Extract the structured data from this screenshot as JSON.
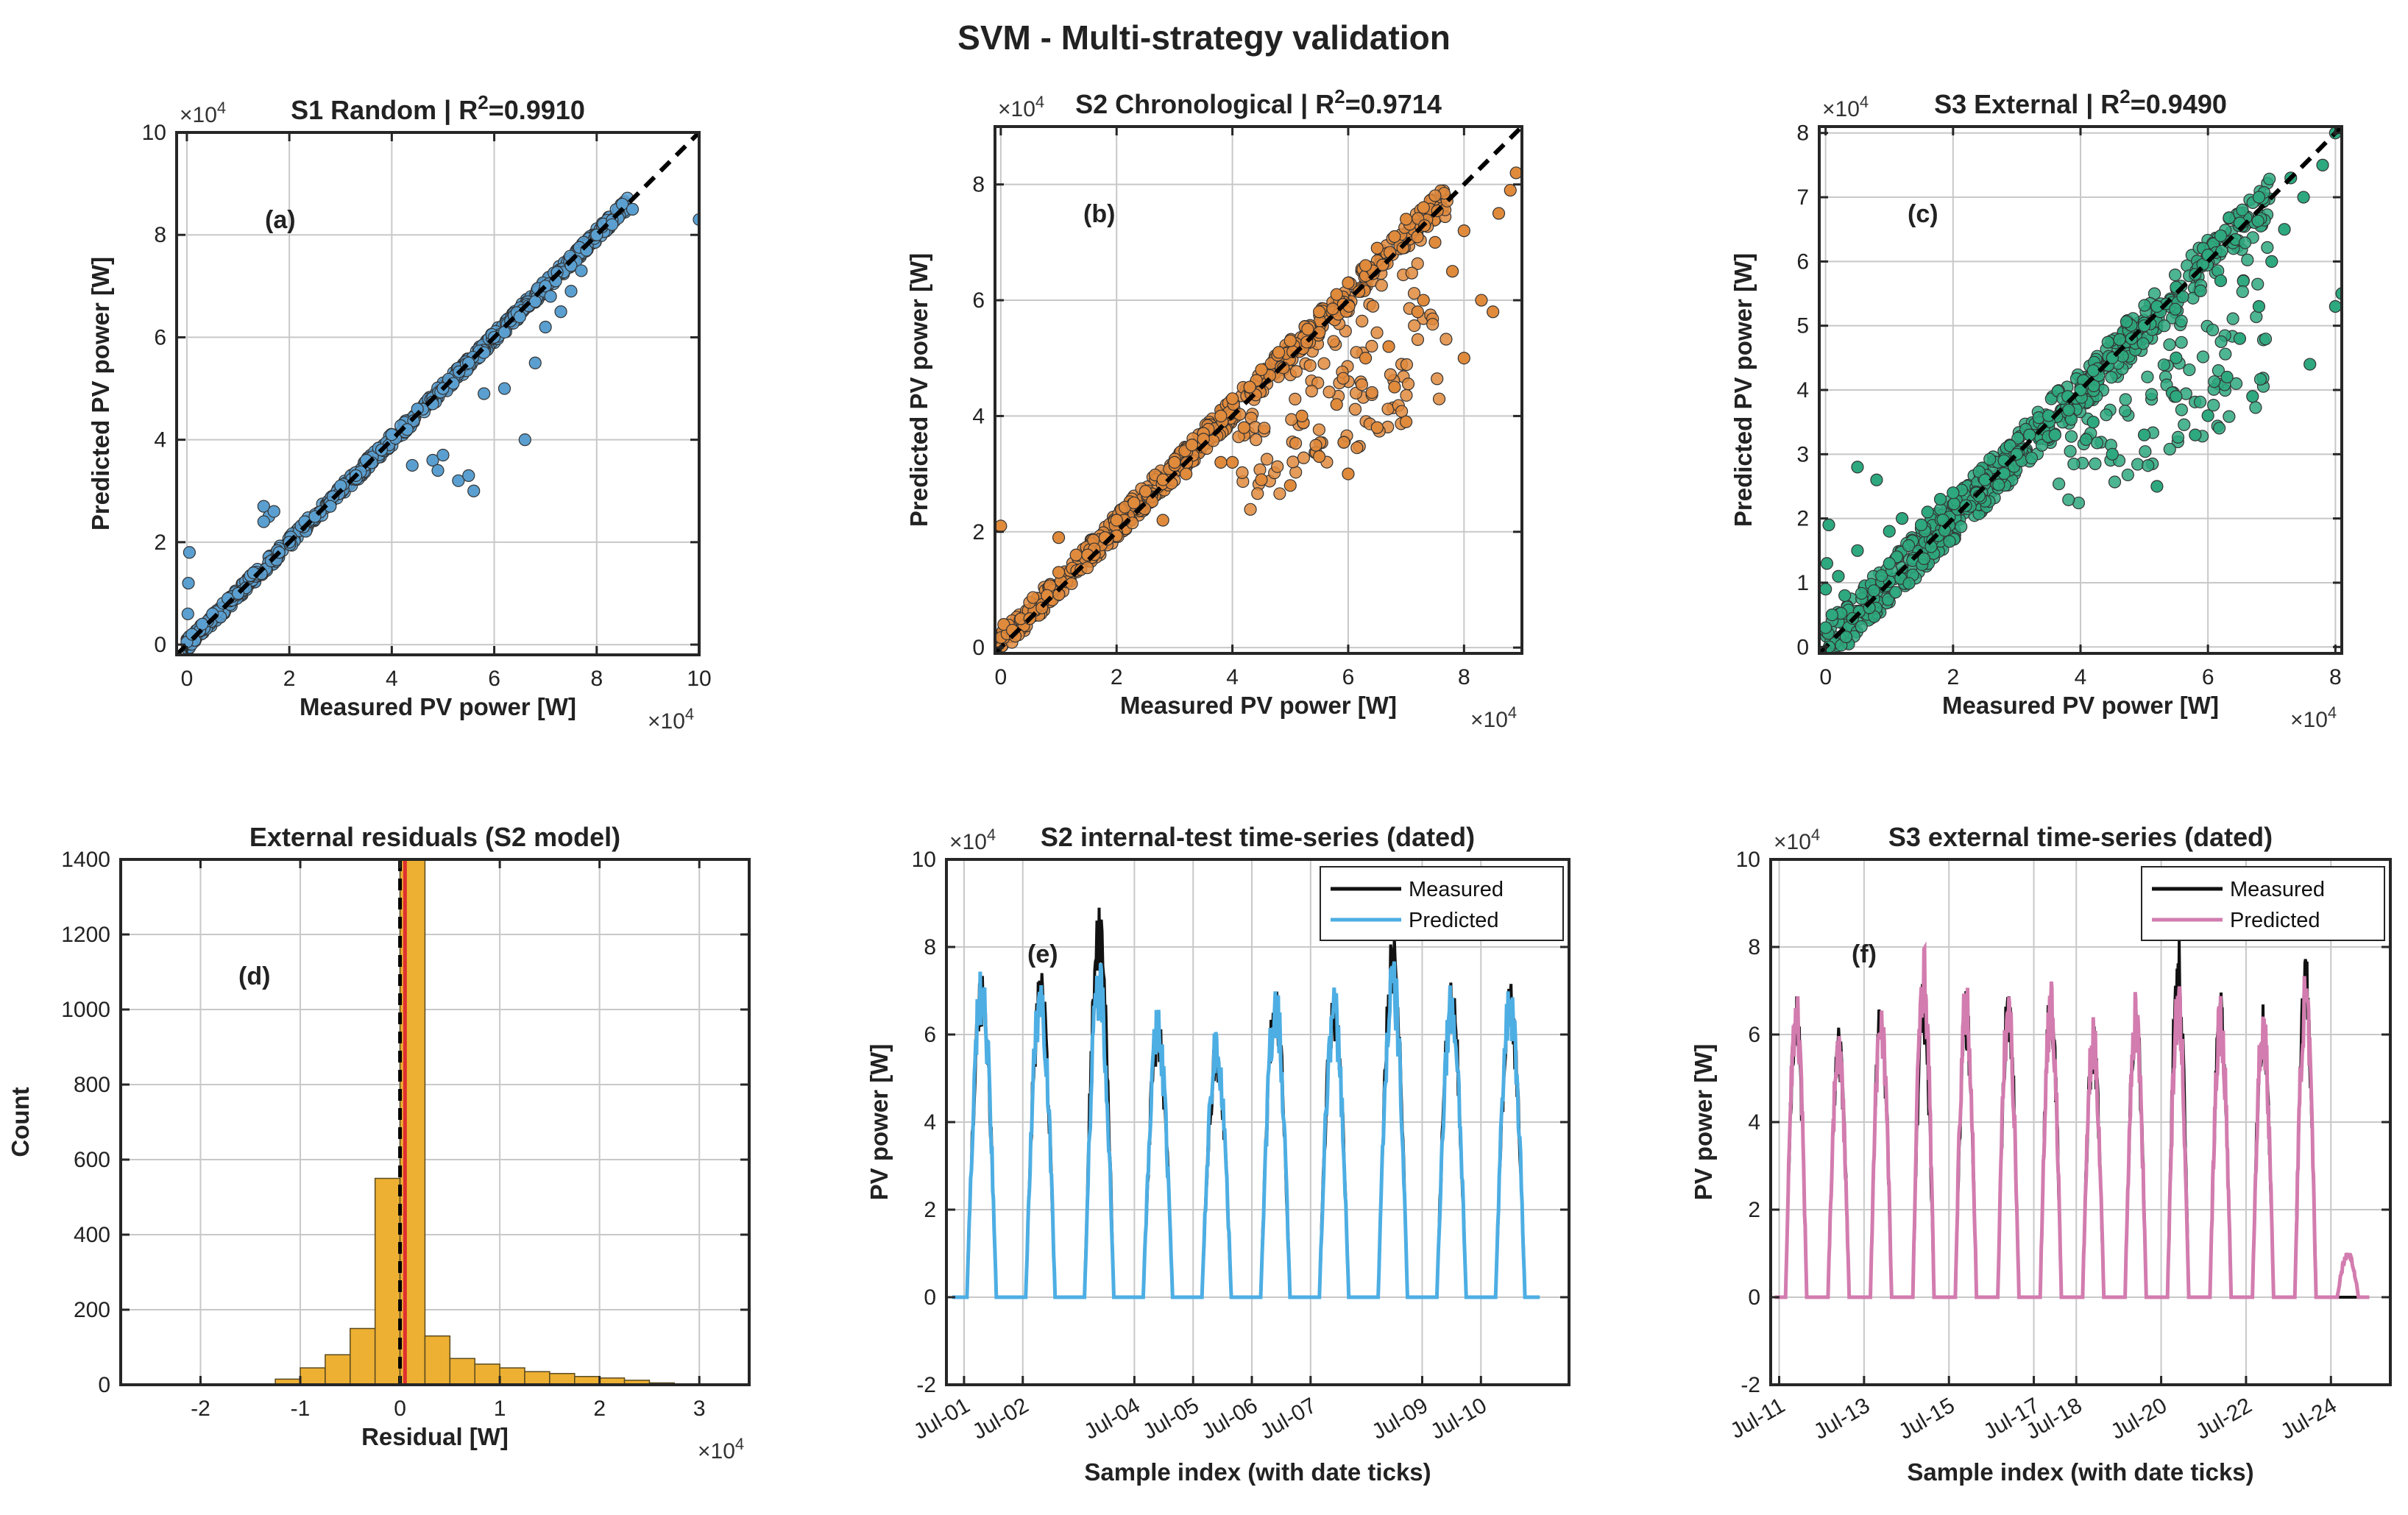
{
  "figure": {
    "title": "SVM  -  Multi-strategy validation"
  },
  "chart_data": [
    {
      "id": "a",
      "type": "scatter",
      "panel_label": "(a)",
      "title": "S1 Random  |  R",
      "title_sup": "2",
      "title_value": "=0.9910",
      "xlabel": "Measured PV power [W]",
      "ylabel": "Predicted PV power [W]",
      "x_multiplier": "×10",
      "x_multiplier_exp": "4",
      "y_multiplier": "×10",
      "y_multiplier_exp": "4",
      "xlim": [
        -0.2,
        10
      ],
      "ylim": [
        -0.2,
        10
      ],
      "xticks": [
        0,
        2,
        4,
        6,
        8,
        10
      ],
      "yticks": [
        0,
        2,
        4,
        6,
        8,
        10
      ],
      "xtick_labels": [
        "0",
        "2",
        "4",
        "6",
        "8",
        "10"
      ],
      "ytick_labels": [
        "0",
        "2",
        "4",
        "6",
        "8",
        "10"
      ],
      "reference_line": "y = x (dashed)",
      "point_color": "#5A9FD0",
      "grid": true,
      "series": [
        {
          "name": "",
          "points": [
            [
              0.0,
              0.05
            ],
            [
              0.02,
              0.6
            ],
            [
              0.03,
              1.2
            ],
            [
              0.05,
              1.8
            ],
            [
              0.1,
              0.2
            ],
            [
              0.3,
              0.4
            ],
            [
              0.5,
              0.6
            ],
            [
              0.8,
              0.9
            ],
            [
              1.0,
              1.0
            ],
            [
              1.3,
              1.4
            ],
            [
              1.5,
              2.7
            ],
            [
              1.6,
              2.5
            ],
            [
              1.7,
              2.6
            ],
            [
              1.5,
              2.4
            ],
            [
              1.8,
              1.8
            ],
            [
              2.0,
              2.0
            ],
            [
              2.3,
              2.4
            ],
            [
              2.5,
              2.5
            ],
            [
              2.8,
              2.7
            ],
            [
              3.0,
              3.1
            ],
            [
              3.3,
              3.3
            ],
            [
              3.5,
              3.6
            ],
            [
              3.8,
              3.8
            ],
            [
              4.0,
              4.1
            ],
            [
              4.3,
              4.2
            ],
            [
              4.5,
              4.6
            ],
            [
              4.8,
              4.7
            ],
            [
              5.0,
              5.0
            ],
            [
              5.2,
              5.1
            ],
            [
              5.5,
              5.5
            ],
            [
              5.8,
              5.7
            ],
            [
              6.0,
              6.0
            ],
            [
              6.2,
              6.1
            ],
            [
              6.5,
              6.4
            ],
            [
              6.8,
              6.7
            ],
            [
              7.0,
              7.0
            ],
            [
              7.2,
              7.1
            ],
            [
              7.5,
              7.4
            ],
            [
              7.8,
              7.7
            ],
            [
              8.0,
              8.0
            ],
            [
              8.3,
              8.2
            ],
            [
              8.5,
              8.6
            ],
            [
              8.7,
              8.5
            ],
            [
              10.0,
              8.3
            ],
            [
              4.8,
              3.6
            ],
            [
              5.0,
              3.7
            ],
            [
              5.3,
              3.2
            ],
            [
              5.5,
              3.3
            ],
            [
              5.6,
              3.0
            ],
            [
              4.9,
              3.4
            ],
            [
              6.6,
              4.0
            ],
            [
              5.8,
              4.9
            ],
            [
              6.2,
              5.0
            ],
            [
              6.8,
              5.5
            ],
            [
              7.0,
              6.2
            ],
            [
              7.3,
              6.5
            ],
            [
              7.5,
              6.9
            ],
            [
              7.7,
              7.3
            ],
            [
              7.1,
              6.8
            ],
            [
              4.4,
              3.5
            ]
          ]
        }
      ]
    },
    {
      "id": "b",
      "type": "scatter",
      "panel_label": "(b)",
      "title": "S2 Chronological  |  R",
      "title_sup": "2",
      "title_value": "=0.9714",
      "xlabel": "Measured PV power [W]",
      "ylabel": "Predicted PV power [W]",
      "x_multiplier": "×10",
      "x_multiplier_exp": "4",
      "y_multiplier": "×10",
      "y_multiplier_exp": "4",
      "xlim": [
        -0.1,
        9
      ],
      "ylim": [
        -0.1,
        9
      ],
      "xticks": [
        0,
        2,
        4,
        6,
        8
      ],
      "yticks": [
        0,
        2,
        4,
        6,
        8
      ],
      "xtick_labels": [
        "0",
        "2",
        "4",
        "6",
        "8"
      ],
      "ytick_labels": [
        "0",
        "2",
        "4",
        "6",
        "8"
      ],
      "reference_line": "y = x (dashed)",
      "point_color": "#E08A3C",
      "grid": true,
      "series": [
        {
          "name": "",
          "points": [
            [
              0.0,
              2.1
            ],
            [
              0.05,
              0.4
            ],
            [
              0.2,
              0.3
            ],
            [
              0.5,
              0.5
            ],
            [
              0.8,
              0.9
            ],
            [
              1.0,
              1.3
            ],
            [
              1.0,
              1.9
            ],
            [
              1.3,
              1.6
            ],
            [
              1.5,
              1.6
            ],
            [
              1.8,
              1.9
            ],
            [
              2.0,
              2.2
            ],
            [
              2.3,
              2.5
            ],
            [
              2.5,
              2.7
            ],
            [
              2.8,
              2.9
            ],
            [
              3.0,
              3.2
            ],
            [
              3.3,
              3.5
            ],
            [
              3.5,
              3.7
            ],
            [
              3.8,
              4.0
            ],
            [
              4.0,
              4.3
            ],
            [
              4.3,
              4.5
            ],
            [
              4.5,
              4.8
            ],
            [
              4.8,
              5.1
            ],
            [
              5.0,
              5.3
            ],
            [
              5.3,
              5.5
            ],
            [
              5.5,
              5.8
            ],
            [
              5.8,
              6.1
            ],
            [
              6.0,
              6.3
            ],
            [
              6.3,
              6.6
            ],
            [
              6.5,
              6.9
            ],
            [
              6.8,
              7.1
            ],
            [
              7.0,
              7.4
            ],
            [
              7.3,
              7.6
            ],
            [
              3.5,
              3.6
            ],
            [
              4.0,
              3.2
            ],
            [
              4.5,
              2.9
            ],
            [
              5.0,
              2.8
            ],
            [
              5.5,
              3.3
            ],
            [
              6.0,
              3.0
            ],
            [
              6.5,
              3.8
            ],
            [
              7.0,
              3.9
            ],
            [
              6.8,
              4.5
            ],
            [
              6.3,
              5.0
            ],
            [
              5.8,
              4.2
            ],
            [
              7.2,
              5.8
            ],
            [
              7.5,
              7.0
            ],
            [
              7.8,
              6.5
            ],
            [
              8.0,
              7.2
            ],
            [
              8.3,
              6.0
            ],
            [
              8.5,
              5.8
            ],
            [
              8.6,
              7.5
            ],
            [
              8.8,
              7.9
            ],
            [
              8.9,
              8.2
            ],
            [
              8.0,
              5.0
            ],
            [
              7.3,
              6.0
            ],
            [
              6.7,
              5.2
            ],
            [
              5.2,
              4.0
            ],
            [
              4.2,
              3.8
            ],
            [
              3.8,
              3.2
            ],
            [
              3.2,
              3.0
            ],
            [
              2.8,
              2.2
            ]
          ]
        }
      ]
    },
    {
      "id": "c",
      "type": "scatter",
      "panel_label": "(c)",
      "title": "S3 External  |  R",
      "title_sup": "2",
      "title_value": "=0.9490",
      "xlabel": "Measured PV power [W]",
      "ylabel": "Predicted PV power [W]",
      "x_multiplier": "×10",
      "x_multiplier_exp": "4",
      "y_multiplier": "×10",
      "y_multiplier_exp": "4",
      "xlim": [
        -0.1,
        8.1
      ],
      "ylim": [
        -0.1,
        8.1
      ],
      "xticks": [
        0,
        2,
        4,
        6,
        8
      ],
      "yticks": [
        0,
        1,
        2,
        3,
        4,
        5,
        6,
        7,
        8
      ],
      "xtick_labels": [
        "0",
        "2",
        "4",
        "6",
        "8"
      ],
      "ytick_labels": [
        "0",
        "1",
        "2",
        "3",
        "4",
        "5",
        "6",
        "7",
        "8"
      ],
      "reference_line": "y = x (dashed)",
      "point_color": "#2EA87E",
      "grid": true,
      "series": [
        {
          "name": "",
          "points": [
            [
              0.0,
              0.3
            ],
            [
              0.0,
              0.9
            ],
            [
              0.02,
              1.3
            ],
            [
              0.05,
              1.9
            ],
            [
              0.1,
              0.5
            ],
            [
              0.2,
              1.1
            ],
            [
              0.5,
              2.8
            ],
            [
              0.8,
              2.6
            ],
            [
              1.0,
              1.3
            ],
            [
              1.0,
              1.8
            ],
            [
              1.2,
              2.0
            ],
            [
              1.5,
              1.9
            ],
            [
              1.8,
              2.3
            ],
            [
              2.0,
              2.4
            ],
            [
              2.2,
              2.2
            ],
            [
              2.5,
              2.6
            ],
            [
              2.8,
              2.9
            ],
            [
              3.0,
              3.0
            ],
            [
              3.2,
              3.3
            ],
            [
              3.5,
              3.6
            ],
            [
              3.8,
              3.9
            ],
            [
              4.0,
              4.0
            ],
            [
              4.2,
              4.3
            ],
            [
              4.5,
              4.5
            ],
            [
              4.8,
              4.8
            ],
            [
              5.0,
              5.0
            ],
            [
              5.2,
              5.3
            ],
            [
              5.5,
              5.6
            ],
            [
              5.8,
              5.8
            ],
            [
              6.0,
              6.1
            ],
            [
              6.2,
              6.4
            ],
            [
              6.5,
              6.6
            ],
            [
              6.8,
              7.0
            ],
            [
              4.2,
              3.5
            ],
            [
              4.5,
              3.0
            ],
            [
              5.0,
              3.3
            ],
            [
              5.2,
              2.5
            ],
            [
              5.5,
              3.9
            ],
            [
              5.8,
              3.3
            ],
            [
              6.0,
              3.6
            ],
            [
              6.3,
              4.2
            ],
            [
              6.5,
              4.8
            ],
            [
              6.8,
              5.3
            ],
            [
              6.7,
              3.9
            ],
            [
              7.0,
              6.0
            ],
            [
              7.2,
              6.5
            ],
            [
              7.3,
              7.3
            ],
            [
              7.5,
              7.0
            ],
            [
              7.6,
              4.4
            ],
            [
              7.8,
              7.5
            ],
            [
              8.0,
              8.0
            ],
            [
              8.1,
              5.5
            ],
            [
              8.0,
              5.3
            ],
            [
              5.5,
              4.5
            ],
            [
              6.2,
              5.7
            ],
            [
              3.6,
              3.3
            ],
            [
              2.8,
              2.7
            ],
            [
              1.6,
              2.1
            ],
            [
              0.5,
              1.5
            ],
            [
              0.3,
              0.8
            ]
          ]
        }
      ]
    },
    {
      "id": "d",
      "type": "bar",
      "panel_label": "(d)",
      "title": "External residuals (S2 model)",
      "xlabel": "Residual [W]",
      "ylabel": "Count",
      "x_multiplier": "×10",
      "x_multiplier_exp": "4",
      "xlim": [
        -2.8,
        3.5
      ],
      "ylim": [
        0,
        1400
      ],
      "xticks": [
        -2,
        -1,
        0,
        1,
        2,
        3
      ],
      "yticks": [
        0,
        200,
        400,
        600,
        800,
        1000,
        1200,
        1400
      ],
      "xtick_labels": [
        "-2",
        "-1",
        "0",
        "1",
        "2",
        "3"
      ],
      "ytick_labels": [
        "0",
        "200",
        "400",
        "600",
        "800",
        "1000",
        "1200",
        "1400"
      ],
      "bar_color": "#EDB032",
      "bin_width": 0.25,
      "bin_starts": [
        -1.25,
        -1.0,
        -0.75,
        -0.5,
        -0.25,
        0.0,
        0.25,
        0.5,
        0.75,
        1.0,
        1.25,
        1.5,
        1.75,
        2.0,
        2.25,
        2.5
      ],
      "counts": [
        15,
        45,
        80,
        150,
        550,
        1420,
        130,
        70,
        55,
        45,
        35,
        30,
        22,
        18,
        12,
        5
      ],
      "reference_lines": [
        {
          "x": 0,
          "style": "dashed",
          "color": "#000000"
        },
        {
          "x": 0.05,
          "style": "solid",
          "color": "#E03030"
        }
      ],
      "grid": true
    },
    {
      "id": "e",
      "type": "line",
      "panel_label": "(e)",
      "title": "S2 internal-test time-series (dated)",
      "xlabel": "Sample index (with date ticks)",
      "ylabel": "PV power [W]",
      "y_multiplier": "×10",
      "y_multiplier_exp": "4",
      "xlim": [
        0,
        10.6
      ],
      "ylim": [
        -2,
        10
      ],
      "yticks": [
        -2,
        0,
        2,
        4,
        6,
        8,
        10
      ],
      "ytick_labels": [
        "-2",
        "0",
        "2",
        "4",
        "6",
        "8",
        "10"
      ],
      "date_tick_positions": [
        0.3,
        1.3,
        3.2,
        4.2,
        5.2,
        6.2,
        8.1,
        9.1
      ],
      "date_tick_labels": [
        "Jul-01",
        "Jul-02",
        "Jul-04",
        "Jul-05",
        "Jul-06",
        "Jul-07",
        "Jul-09",
        "Jul-10"
      ],
      "day_peaks_measured": [
        7.5,
        7.6,
        9.0,
        6.5,
        6.0,
        7.3,
        7.2,
        8.4,
        7.3,
        7.4
      ],
      "day_peaks_predicted": [
        7.7,
        7.6,
        7.9,
        6.7,
        6.3,
        7.3,
        7.2,
        7.9,
        7.3,
        7.4
      ],
      "series": [
        {
          "name": "Measured",
          "color": "#111111"
        },
        {
          "name": "Predicted",
          "color": "#4DAEE3"
        }
      ],
      "legend_position": "top-right",
      "grid": true
    },
    {
      "id": "f",
      "type": "line",
      "panel_label": "(f)",
      "title": "S3 external time-series (dated)",
      "xlabel": "Sample index (with date ticks)",
      "ylabel": "PV power [W]",
      "y_multiplier": "×10",
      "y_multiplier_exp": "4",
      "xlim": [
        0,
        14.6
      ],
      "ylim": [
        -2,
        10
      ],
      "yticks": [
        -2,
        0,
        2,
        4,
        6,
        8,
        10
      ],
      "ytick_labels": [
        "-2",
        "0",
        "2",
        "4",
        "6",
        "8",
        "10"
      ],
      "date_tick_positions": [
        0.2,
        2.2,
        4.2,
        6.2,
        7.2,
        9.2,
        11.2,
        13.2
      ],
      "date_tick_labels": [
        "Jul-11",
        "Jul-13",
        "Jul-15",
        "Jul-17",
        "Jul-18",
        "Jul-20",
        "Jul-22",
        "Jul-24"
      ],
      "day_peaks_measured": [
        7.0,
        6.2,
        7.0,
        7.3,
        7.0,
        7.2,
        7.3,
        6.3,
        7.0,
        8.3,
        7.0,
        6.8,
        8.0,
        0.0
      ],
      "day_peaks_predicted": [
        7.2,
        6.2,
        7.0,
        8.2,
        7.3,
        7.2,
        7.3,
        6.4,
        7.0,
        7.3,
        6.9,
        6.8,
        7.5,
        1.1
      ],
      "series": [
        {
          "name": "Measured",
          "color": "#111111"
        },
        {
          "name": "Predicted",
          "color": "#D27CAF"
        }
      ],
      "legend_position": "top-right",
      "grid": true
    }
  ]
}
